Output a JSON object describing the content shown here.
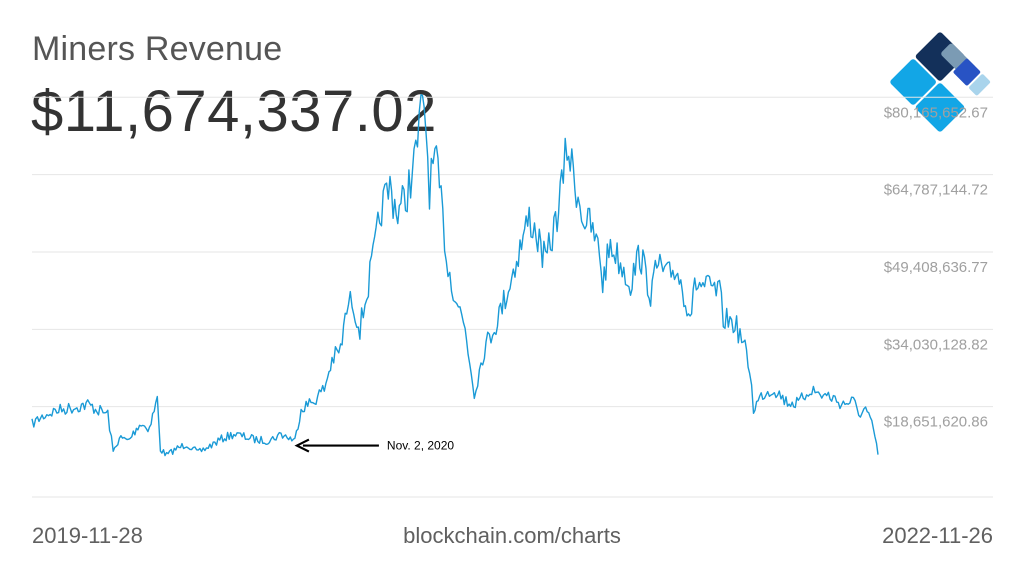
{
  "header": {
    "title": "Miners Revenue",
    "value": "$11,674,337.02"
  },
  "footer": {
    "date_start": "2019-11-28",
    "source": "blockchain.com/charts",
    "date_end": "2022-11-26"
  },
  "colors": {
    "line": "#1a9ad6",
    "grid": "#e6e6e6",
    "tick_text": "#a0a0a0",
    "logo_dark": "#13305a",
    "logo_mid": "#2853c4",
    "logo_grey": "#7b9bb4",
    "logo_cyan": "#12a6e6",
    "logo_light": "#a9d4ec"
  },
  "chart_data": {
    "type": "line",
    "title": "Miners Revenue",
    "xlim": [
      "2019-11-28",
      "2022-11-26"
    ],
    "ylim": [
      3273113,
      85000000
    ],
    "yticks": [
      18651620.86,
      34030128.82,
      49408636.77,
      64787144.72,
      80165652.67
    ],
    "ytick_labels": [
      "$18,651,620.86",
      "$34,030,128.82",
      "$49,408,636.77",
      "$64,787,144.72",
      "$80,165,652.67"
    ],
    "grid": true,
    "annotation": {
      "text": "Nov. 2, 2020",
      "x": "2020-11-02",
      "y": 13500000
    },
    "series": [
      {
        "x": [
          "2019-11-28",
          "2019-12-05",
          "2019-12-15",
          "2019-12-28",
          "2020-01-10",
          "2020-01-25",
          "2020-02-08",
          "2020-02-22",
          "2020-03-05",
          "2020-03-12",
          "2020-03-20",
          "2020-04-01",
          "2020-04-15",
          "2020-04-28",
          "2020-05-08",
          "2020-05-12",
          "2020-05-20",
          "2020-06-01",
          "2020-06-15",
          "2020-06-30",
          "2020-07-15",
          "2020-07-30",
          "2020-08-15",
          "2020-08-30",
          "2020-09-15",
          "2020-09-30",
          "2020-10-15",
          "2020-11-02",
          "2020-11-10",
          "2020-11-25",
          "2020-12-10",
          "2020-12-20",
          "2020-12-31",
          "2021-01-08",
          "2021-01-15",
          "2021-01-25",
          "2021-02-05",
          "2021-02-15",
          "2021-02-22",
          "2021-03-05",
          "2021-03-15",
          "2021-03-25",
          "2021-04-05",
          "2021-04-14",
          "2021-04-18",
          "2021-04-25",
          "2021-05-02",
          "2021-05-10",
          "2021-05-19",
          "2021-05-28",
          "2021-06-10",
          "2021-06-22",
          "2021-07-05",
          "2021-07-20",
          "2021-08-05",
          "2021-08-20",
          "2021-09-01",
          "2021-09-10",
          "2021-09-22",
          "2021-10-05",
          "2021-10-15",
          "2021-10-20",
          "2021-11-01",
          "2021-11-10",
          "2021-11-20",
          "2021-12-01",
          "2021-12-05",
          "2021-12-15",
          "2021-12-28",
          "2022-01-10",
          "2022-01-22",
          "2022-02-05",
          "2022-02-15",
          "2022-02-25",
          "2022-03-10",
          "2022-03-28",
          "2022-04-05",
          "2022-04-20",
          "2022-05-05",
          "2022-05-10",
          "2022-05-25",
          "2022-06-05",
          "2022-06-13",
          "2022-06-18",
          "2022-06-30",
          "2022-07-15",
          "2022-07-30",
          "2022-08-15",
          "2022-08-30",
          "2022-09-10",
          "2022-09-25",
          "2022-10-10",
          "2022-10-25",
          "2022-11-01",
          "2022-11-10",
          "2022-11-20",
          "2022-11-26"
        ],
        "y": [
          17800000,
          18600000,
          19600000,
          20400000,
          20800000,
          21200000,
          21700000,
          20500000,
          19800000,
          12200000,
          15000000,
          14500000,
          17800000,
          17000000,
          22800000,
          12800000,
          11600000,
          12800000,
          13800000,
          12100000,
          13400000,
          14800000,
          15800000,
          15200000,
          14600000,
          14500000,
          15800000,
          14500000,
          21000000,
          22200000,
          24800000,
          30500000,
          32500000,
          40500000,
          42500000,
          36800000,
          45500000,
          54000000,
          60800000,
          64800000,
          59800000,
          62800000,
          69000000,
          78800000,
          82500000,
          64800000,
          70800000,
          61800000,
          48800000,
          43800000,
          36800000,
          24000000,
          32800000,
          37800000,
          44800000,
          52800000,
          58800000,
          55800000,
          49800000,
          57800000,
          66800000,
          73300000,
          64800000,
          58800000,
          56800000,
          51800000,
          45800000,
          53800000,
          49800000,
          45800000,
          51800000,
          43800000,
          49800000,
          46800000,
          48800000,
          39800000,
          45800000,
          44800000,
          43800000,
          38800000,
          37800000,
          33800000,
          28800000,
          20800000,
          23800000,
          24800000,
          22300000,
          21800000,
          24800000,
          23800000,
          23300000,
          21800000,
          22300000,
          19800000,
          20800000,
          16800000,
          11700000
        ]
      }
    ]
  }
}
